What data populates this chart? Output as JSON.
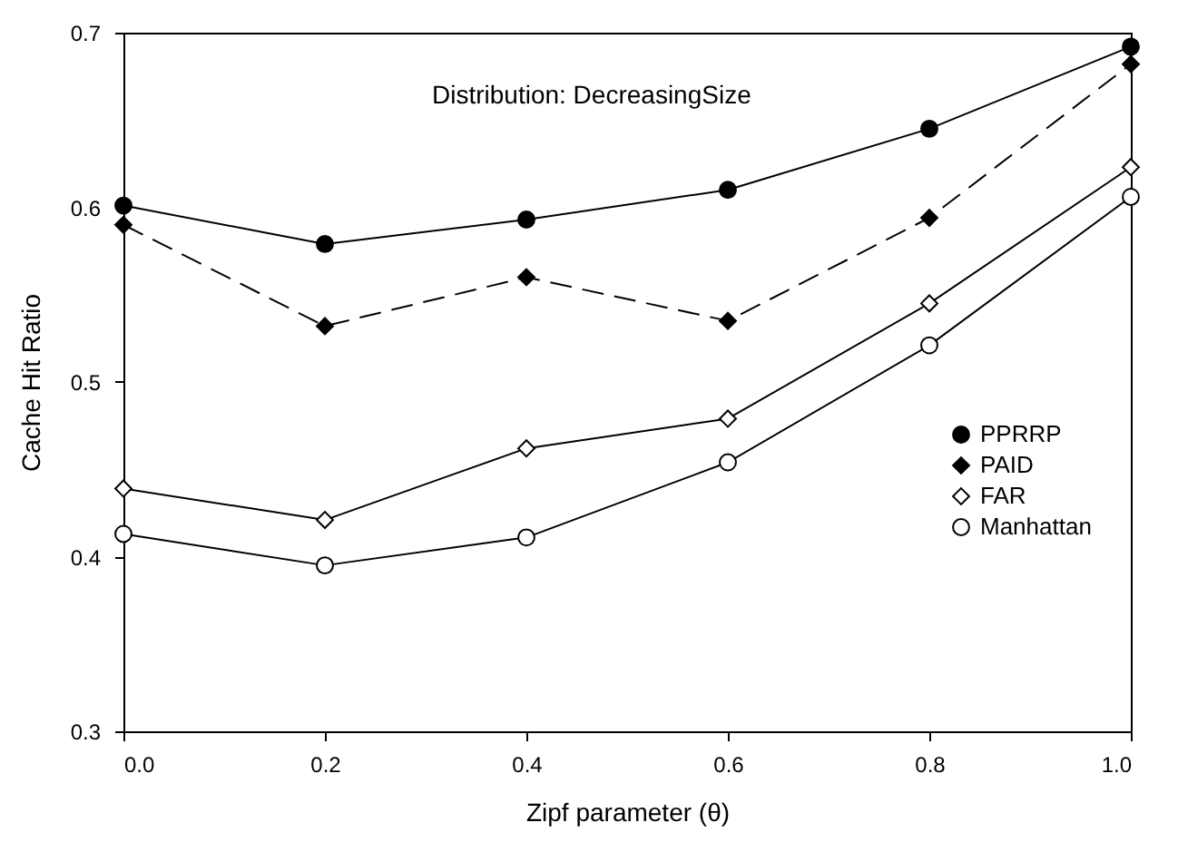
{
  "chart_data": {
    "type": "line",
    "xlabel": "Zipf parameter (θ)",
    "ylabel": "Cache Hit Ratio",
    "annotations": [
      "Distribution: DecreasingSize"
    ],
    "x": [
      0.0,
      0.2,
      0.4,
      0.6,
      0.8,
      1.0
    ],
    "xlim": [
      0,
      1
    ],
    "xticks": [
      {
        "value": 0,
        "label": "0.0"
      },
      0.2,
      0.4,
      0.6,
      0.8,
      {
        "value": 1,
        "label": "1.0"
      }
    ],
    "ylim": [
      0.3,
      0.7
    ],
    "yticks": [
      0.3,
      0.4,
      0.5,
      0.6,
      0.7
    ],
    "grid": false,
    "legend": "right",
    "series": [
      {
        "name": "PPRRP",
        "color": "#000000",
        "marker": "circle",
        "line_style": "solid",
        "values": [
          0.601,
          0.579,
          0.593,
          0.61,
          0.645,
          0.692
        ]
      },
      {
        "name": "PAID",
        "color": "#000000",
        "marker": "diamond",
        "line_style": "dashed",
        "values": [
          0.59,
          0.532,
          0.56,
          0.535,
          0.594,
          0.682
        ]
      },
      {
        "name": "FAR",
        "color": "#000000",
        "marker": "diamond",
        "line_style": "solid",
        "values": [
          0.439,
          0.421,
          0.462,
          0.479,
          0.545,
          0.623
        ]
      },
      {
        "name": "Manhattan",
        "color": "#000000",
        "marker": "circle",
        "line_style": "solid",
        "values": [
          0.413,
          0.395,
          0.411,
          0.454,
          0.521,
          0.606
        ]
      }
    ]
  }
}
